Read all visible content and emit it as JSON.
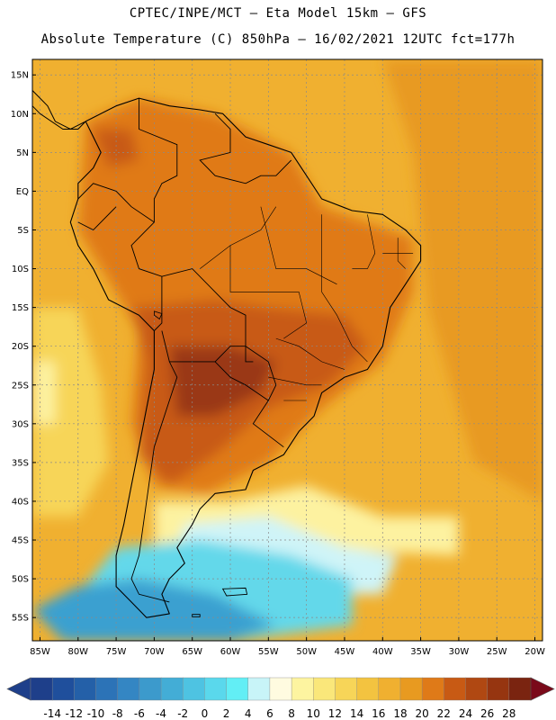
{
  "header": {
    "line1": "CPTEC/INPE/MCT –  Eta Model 15km – GFS",
    "line2": "Absolute Temperature (C) 850hPa – 16/02/2021 12UTC fct=177h"
  },
  "map": {
    "lon_range": [
      -86,
      -19
    ],
    "lat_range": [
      -58,
      17
    ],
    "lat_ticks": [
      {
        "value": 15,
        "label": "15N"
      },
      {
        "value": 10,
        "label": "10N"
      },
      {
        "value": 5,
        "label": "5N"
      },
      {
        "value": 0,
        "label": "EQ"
      },
      {
        "value": -5,
        "label": "5S"
      },
      {
        "value": -10,
        "label": "10S"
      },
      {
        "value": -15,
        "label": "15S"
      },
      {
        "value": -20,
        "label": "20S"
      },
      {
        "value": -25,
        "label": "25S"
      },
      {
        "value": -30,
        "label": "30S"
      },
      {
        "value": -35,
        "label": "35S"
      },
      {
        "value": -40,
        "label": "40S"
      },
      {
        "value": -45,
        "label": "45S"
      },
      {
        "value": -50,
        "label": "50S"
      },
      {
        "value": -55,
        "label": "55S"
      }
    ],
    "lon_ticks": [
      {
        "value": -85,
        "label": "85W"
      },
      {
        "value": -80,
        "label": "80W"
      },
      {
        "value": -75,
        "label": "75W"
      },
      {
        "value": -70,
        "label": "70W"
      },
      {
        "value": -65,
        "label": "65W"
      },
      {
        "value": -60,
        "label": "60W"
      },
      {
        "value": -55,
        "label": "55W"
      },
      {
        "value": -50,
        "label": "50W"
      },
      {
        "value": -45,
        "label": "45W"
      },
      {
        "value": -40,
        "label": "40W"
      },
      {
        "value": -35,
        "label": "35W"
      },
      {
        "value": -30,
        "label": "30W"
      },
      {
        "value": -25,
        "label": "25W"
      },
      {
        "value": -20,
        "label": "20W"
      }
    ],
    "field_base_color": "#f0b030",
    "field_regions": [
      {
        "name": "ocean-warm-east",
        "color": "#e89a20",
        "points": [
          [
            -40,
            17
          ],
          [
            -19,
            17
          ],
          [
            -19,
            -40
          ],
          [
            -28,
            -35
          ],
          [
            -34,
            -15
          ],
          [
            -36,
            5
          ]
        ]
      },
      {
        "name": "pacific-cool",
        "color": "#f7d558",
        "points": [
          [
            -86,
            -15
          ],
          [
            -80,
            -15
          ],
          [
            -77,
            -25
          ],
          [
            -76,
            -35
          ],
          [
            -80,
            -42
          ],
          [
            -86,
            -42
          ]
        ]
      },
      {
        "name": "pacific-pale",
        "color": "#fdf2a0",
        "points": [
          [
            -86,
            -22
          ],
          [
            -83,
            -22
          ],
          [
            -83,
            -30
          ],
          [
            -86,
            -30
          ]
        ]
      },
      {
        "name": "continent-warm",
        "color": "#e07a18",
        "points": [
          [
            -79,
            9
          ],
          [
            -72,
            12
          ],
          [
            -62,
            10
          ],
          [
            -52,
            5
          ],
          [
            -48,
            -2
          ],
          [
            -36,
            -6
          ],
          [
            -36,
            -13
          ],
          [
            -40,
            -22
          ],
          [
            -48,
            -28
          ],
          [
            -55,
            -35
          ],
          [
            -63,
            -39
          ],
          [
            -70,
            -38
          ],
          [
            -73,
            -30
          ],
          [
            -72,
            -18
          ],
          [
            -80,
            -5
          ]
        ]
      },
      {
        "name": "continent-hot",
        "color": "#c85a14",
        "points": [
          [
            -73,
            -15
          ],
          [
            -62,
            -14
          ],
          [
            -55,
            -15
          ],
          [
            -45,
            -16
          ],
          [
            -42,
            -20
          ],
          [
            -47,
            -25
          ],
          [
            -55,
            -28
          ],
          [
            -62,
            -34
          ],
          [
            -68,
            -38
          ],
          [
            -72,
            -34
          ],
          [
            -71,
            -22
          ]
        ]
      },
      {
        "name": "chaco-very-hot",
        "color": "#9a3812",
        "points": [
          [
            -68,
            -20
          ],
          [
            -60,
            -20
          ],
          [
            -54,
            -22
          ],
          [
            -56,
            -26
          ],
          [
            -62,
            -29
          ],
          [
            -67,
            -29
          ]
        ]
      },
      {
        "name": "andes-hot",
        "color": "#c85a14",
        "points": [
          [
            -78,
            8
          ],
          [
            -73,
            8
          ],
          [
            -72,
            4
          ],
          [
            -76,
            3
          ]
        ]
      },
      {
        "name": "south-pale",
        "color": "#fdf2a0",
        "points": [
          [
            -70,
            -40
          ],
          [
            -60,
            -40
          ],
          [
            -50,
            -38
          ],
          [
            -40,
            -42
          ],
          [
            -30,
            -42
          ],
          [
            -30,
            -47
          ],
          [
            -50,
            -46
          ],
          [
            -70,
            -47
          ]
        ]
      },
      {
        "name": "south-light-cyan",
        "color": "#cff4f8",
        "points": [
          [
            -66,
            -43
          ],
          [
            -55,
            -42
          ],
          [
            -45,
            -46
          ],
          [
            -38,
            -47
          ],
          [
            -40,
            -52
          ],
          [
            -55,
            -52
          ],
          [
            -68,
            -50
          ]
        ]
      },
      {
        "name": "south-cyan",
        "color": "#63d8ea",
        "points": [
          [
            -75,
            -46
          ],
          [
            -64,
            -45
          ],
          [
            -52,
            -47
          ],
          [
            -44,
            -50
          ],
          [
            -44,
            -56
          ],
          [
            -60,
            -58
          ],
          [
            -78,
            -58
          ],
          [
            -80,
            -52
          ]
        ]
      },
      {
        "name": "south-blue",
        "color": "#3aa0d0",
        "points": [
          [
            -80,
            -51
          ],
          [
            -72,
            -50
          ],
          [
            -62,
            -52
          ],
          [
            -54,
            -56
          ],
          [
            -60,
            -58
          ],
          [
            -82,
            -58
          ],
          [
            -86,
            -54
          ]
        ]
      }
    ],
    "coastline": [
      [
        -79,
        9
      ],
      [
        -75,
        11
      ],
      [
        -72,
        12
      ],
      [
        -68,
        11
      ],
      [
        -64,
        10.5
      ],
      [
        -61,
        10
      ],
      [
        -58,
        7
      ],
      [
        -55,
        6
      ],
      [
        -52,
        5
      ],
      [
        -50,
        2
      ],
      [
        -48,
        -1
      ],
      [
        -44,
        -2.5
      ],
      [
        -40,
        -3
      ],
      [
        -37,
        -5
      ],
      [
        -35,
        -7
      ],
      [
        -35,
        -9
      ],
      [
        -37,
        -12
      ],
      [
        -39,
        -15
      ],
      [
        -40,
        -20
      ],
      [
        -42,
        -23
      ],
      [
        -45,
        -24
      ],
      [
        -48,
        -26
      ],
      [
        -49,
        -29
      ],
      [
        -51,
        -31
      ],
      [
        -53,
        -34
      ],
      [
        -55,
        -35
      ],
      [
        -57,
        -36
      ],
      [
        -58,
        -38.5
      ],
      [
        -62,
        -39
      ],
      [
        -64,
        -41
      ],
      [
        -65,
        -43
      ],
      [
        -67,
        -46
      ],
      [
        -66,
        -48
      ],
      [
        -68,
        -50
      ],
      [
        -69,
        -52
      ],
      [
        -68,
        -54.5
      ],
      [
        -71,
        -55
      ],
      [
        -73,
        -53
      ],
      [
        -75,
        -51
      ],
      [
        -75,
        -47
      ],
      [
        -74,
        -43
      ],
      [
        -73,
        -38
      ],
      [
        -72,
        -33
      ],
      [
        -71,
        -28
      ],
      [
        -70,
        -23
      ],
      [
        -70,
        -18
      ],
      [
        -72,
        -16
      ],
      [
        -76,
        -14
      ],
      [
        -78,
        -10
      ],
      [
        -80,
        -7
      ],
      [
        -81,
        -4
      ],
      [
        -80,
        -1
      ],
      [
        -80,
        1
      ],
      [
        -78,
        3
      ],
      [
        -77,
        5
      ],
      [
        -78,
        7
      ],
      [
        -79,
        9
      ]
    ],
    "central_america": [
      [
        -86,
        13
      ],
      [
        -84,
        11
      ],
      [
        -83,
        9
      ],
      [
        -81,
        8
      ],
      [
        -79,
        9
      ],
      [
        -80,
        8
      ],
      [
        -82,
        8
      ],
      [
        -85,
        10
      ],
      [
        -86,
        11
      ]
    ],
    "borders": [
      [
        [
          -72,
          12
        ],
        [
          -72,
          8
        ],
        [
          -67,
          6
        ],
        [
          -67,
          2
        ],
        [
          -69,
          1
        ],
        [
          -70,
          -1
        ],
        [
          -70,
          -4
        ],
        [
          -73,
          -7
        ],
        [
          -72,
          -10
        ],
        [
          -69,
          -11
        ],
        [
          -65,
          -10
        ],
        [
          -62,
          -13
        ],
        [
          -60,
          -15
        ],
        [
          -58,
          -16
        ],
        [
          -58,
          -20
        ],
        [
          -55,
          -22
        ],
        [
          -54,
          -25
        ],
        [
          -55,
          -27
        ],
        [
          -57,
          -30
        ],
        [
          -53,
          -33
        ]
      ],
      [
        [
          -62,
          10
        ],
        [
          -60,
          8
        ],
        [
          -60,
          5
        ],
        [
          -64,
          4
        ],
        [
          -62,
          2
        ],
        [
          -58,
          1
        ],
        [
          -56,
          2
        ],
        [
          -54,
          2
        ],
        [
          -52,
          4
        ]
      ],
      [
        [
          -80,
          -1
        ],
        [
          -78,
          1
        ],
        [
          -75,
          0
        ],
        [
          -73,
          -2
        ],
        [
          -70,
          -4
        ]
      ],
      [
        [
          -80,
          -4
        ],
        [
          -78,
          -5
        ],
        [
          -75,
          -2
        ]
      ],
      [
        [
          -69,
          -11
        ],
        [
          -69,
          -17
        ],
        [
          -70,
          -18
        ]
      ],
      [
        [
          -68,
          -22
        ],
        [
          -65,
          -22
        ],
        [
          -62,
          -22
        ],
        [
          -60,
          -20
        ],
        [
          -58,
          -20
        ]
      ],
      [
        [
          -69,
          -18
        ],
        [
          -68,
          -22
        ],
        [
          -67,
          -24
        ],
        [
          -68,
          -27
        ],
        [
          -70,
          -33
        ],
        [
          -71,
          -40
        ],
        [
          -72,
          -47
        ],
        [
          -73,
          -50
        ],
        [
          -72,
          -52
        ],
        [
          -68,
          -53
        ]
      ],
      [
        [
          -62,
          -22
        ],
        [
          -60,
          -24
        ],
        [
          -58,
          -25
        ],
        [
          -55,
          -27
        ]
      ],
      [
        [
          -58,
          -20
        ],
        [
          -58,
          -22
        ],
        [
          -57,
          -22
        ]
      ]
    ],
    "states": [
      [
        [
          -60,
          -7
        ],
        [
          -60,
          -13
        ],
        [
          -56,
          -13
        ],
        [
          -51,
          -13
        ],
        [
          -50,
          -17
        ],
        [
          -53,
          -19
        ]
      ],
      [
        [
          -48,
          -3
        ],
        [
          -48,
          -13
        ],
        [
          -46,
          -16
        ],
        [
          -44,
          -20
        ],
        [
          -42,
          -22
        ]
      ],
      [
        [
          -56,
          -2
        ],
        [
          -54,
          -10
        ],
        [
          -50,
          -10
        ],
        [
          -46,
          -12
        ]
      ],
      [
        [
          -54,
          -19
        ],
        [
          -51,
          -20
        ],
        [
          -48,
          -22
        ],
        [
          -45,
          -23
        ]
      ],
      [
        [
          -55,
          -24
        ],
        [
          -50,
          -25
        ],
        [
          -48,
          -25
        ]
      ],
      [
        [
          -53,
          -27
        ],
        [
          -50,
          -27
        ]
      ],
      [
        [
          -64,
          -10
        ],
        [
          -60,
          -7
        ],
        [
          -56,
          -5
        ],
        [
          -54,
          -2
        ]
      ],
      [
        [
          -42,
          -3
        ],
        [
          -41,
          -8
        ],
        [
          -42,
          -10
        ],
        [
          -44,
          -10
        ]
      ],
      [
        [
          -38,
          -6
        ],
        [
          -38,
          -9
        ],
        [
          -37,
          -10
        ]
      ],
      [
        [
          -40,
          -8
        ],
        [
          -36,
          -8
        ]
      ]
    ],
    "falklands": [
      [
        -61,
        -51.3
      ],
      [
        -58,
        -51.2
      ],
      [
        -57.8,
        -52
      ],
      [
        -60.5,
        -52.2
      ]
    ],
    "isla_estados": [
      [
        -65,
        -54.6
      ],
      [
        -64,
        -54.6
      ],
      [
        -64,
        -54.9
      ],
      [
        -65,
        -54.9
      ]
    ],
    "lake_titicaca": [
      [
        -70,
        -15.5
      ],
      [
        -69,
        -15.8
      ],
      [
        -69.3,
        -16.5
      ],
      [
        -70,
        -16
      ]
    ],
    "colorbar": {
      "levels": [
        "-14",
        "-12",
        "-10",
        "-8",
        "-6",
        "-4",
        "-2",
        "0",
        "2",
        "4",
        "6",
        "8",
        "10",
        "12",
        "14",
        "16",
        "18",
        "20",
        "22",
        "24",
        "26",
        "28"
      ],
      "colors": [
        "#1e3f8a",
        "#1f4f9c",
        "#2460a8",
        "#2c73b7",
        "#3486c3",
        "#3c9acc",
        "#43add6",
        "#4ec3e2",
        "#5ad8ec",
        "#62eef5",
        "#c8f4f8",
        "#fffbe0",
        "#fdf4a0",
        "#fae77a",
        "#f7d558",
        "#f3c340",
        "#f0b030",
        "#e89a20",
        "#df7a18",
        "#c85a14",
        "#b04812",
        "#963510",
        "#7a2410"
      ],
      "end_low_color": "#1e3f8a",
      "end_high_color": "#7a0a1a"
    }
  }
}
